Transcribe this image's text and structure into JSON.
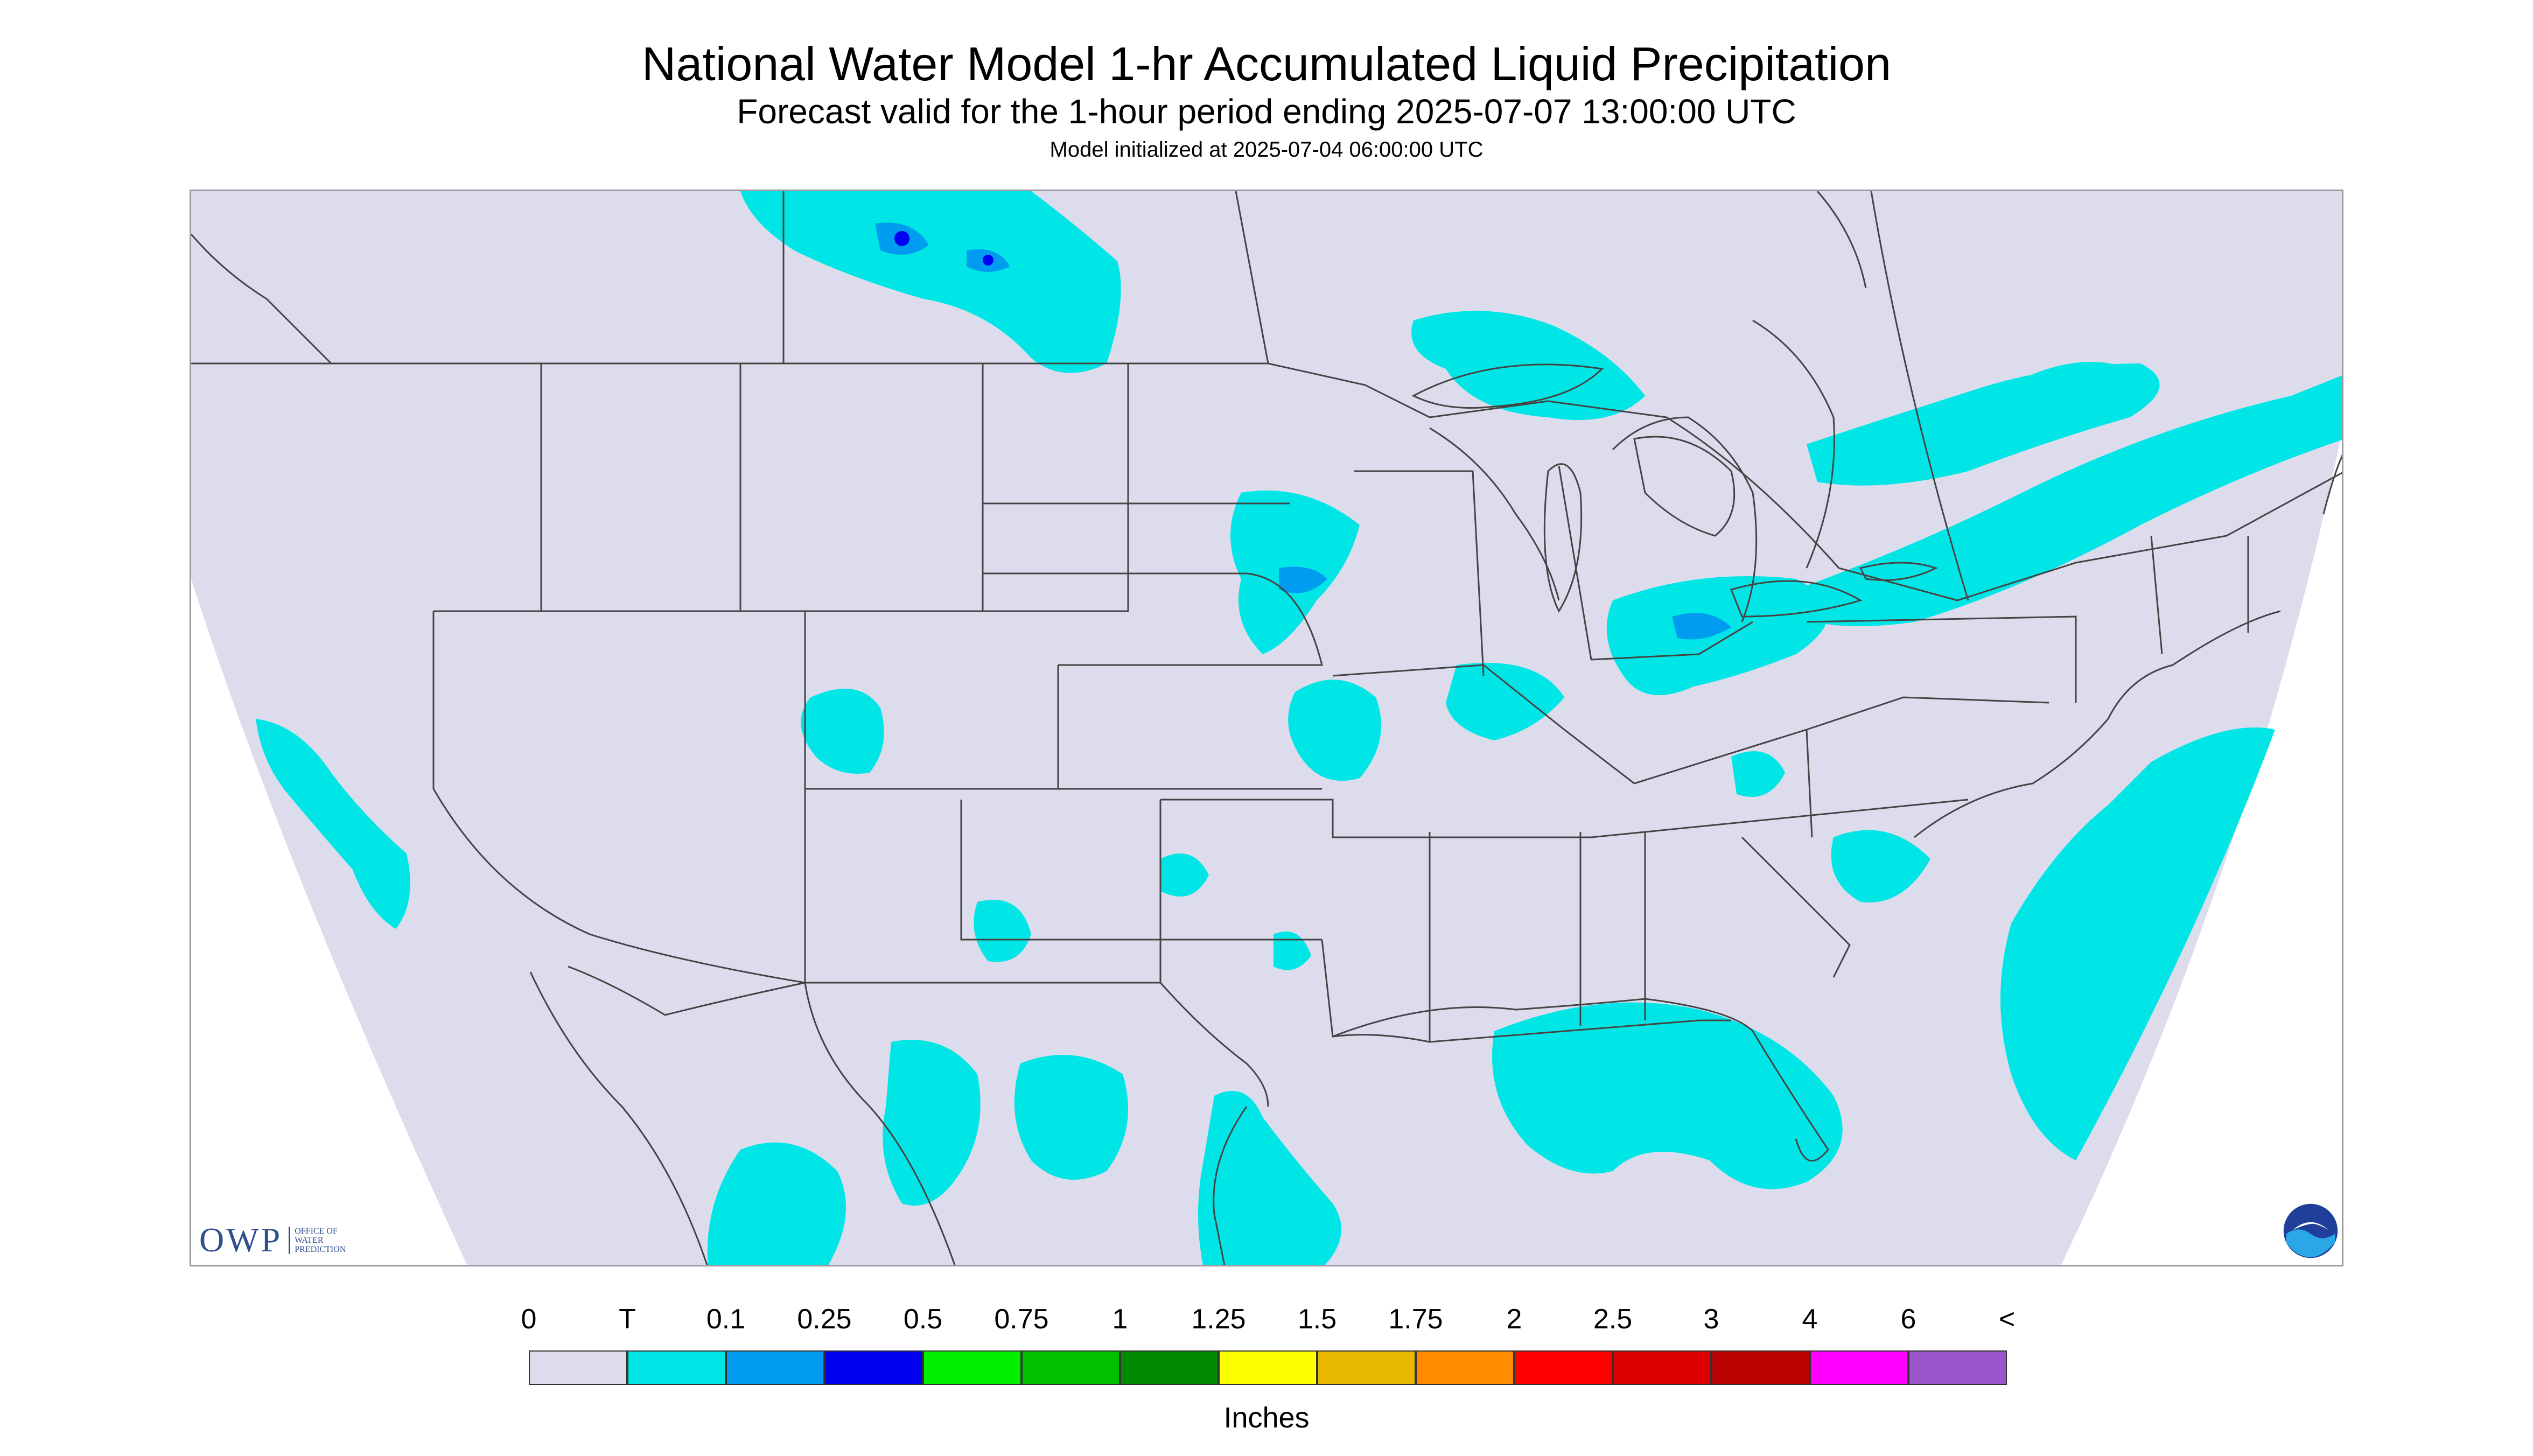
{
  "header": {
    "title": "National Water Model 1-hr Accumulated Liquid Precipitation",
    "subtitle": "Forecast valid for the 1-hour period ending 2025-07-07 13:00:00 UTC",
    "init": "Model initialized at 2025-07-04 06:00:00 UTC"
  },
  "map": {
    "background": "#dcdcec",
    "outside": "#ffffff",
    "border_color": "#555555",
    "owp": {
      "letters": "OWP",
      "sub": [
        "OFFICE OF",
        "WATER",
        "PREDICTION"
      ]
    },
    "noaa_icon": "noaa-logo-icon"
  },
  "legend": {
    "labels": [
      "0",
      "T",
      "0.1",
      "0.25",
      "0.5",
      "0.75",
      "1",
      "1.25",
      "1.5",
      "1.75",
      "2",
      "2.5",
      "3",
      "4",
      "6",
      "<"
    ],
    "colors": [
      "#dcdcec",
      "#00e6e6",
      "#009cf0",
      "#0000f0",
      "#00f000",
      "#00c000",
      "#008a00",
      "#ffff00",
      "#e6b800",
      "#ff8c00",
      "#ff0000",
      "#dd0000",
      "#bb0000",
      "#ff00ff",
      "#9a55cc"
    ],
    "units": "Inches"
  }
}
